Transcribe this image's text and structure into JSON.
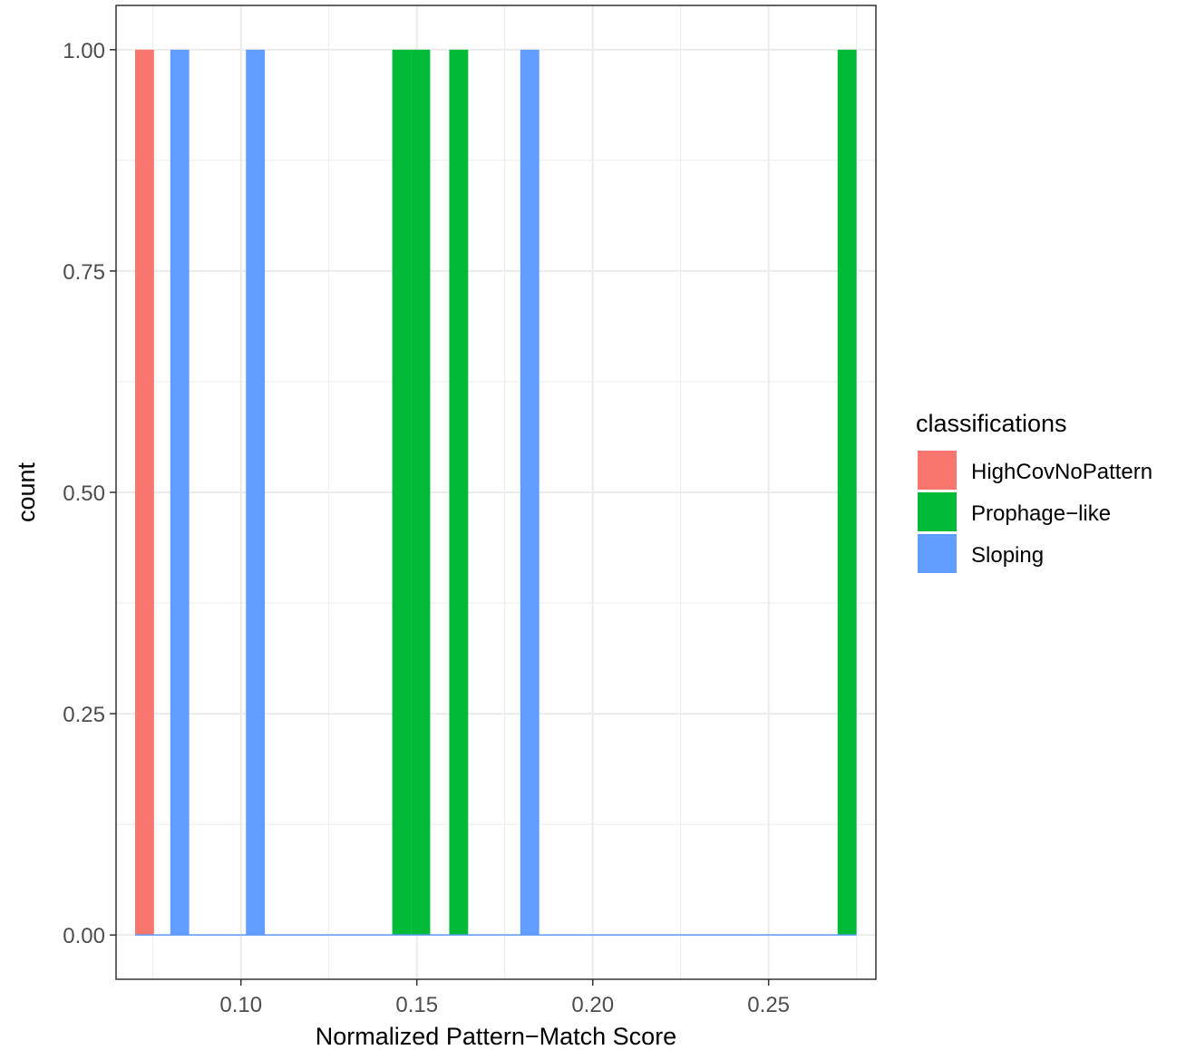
{
  "chart_data": {
    "type": "bar",
    "xlabel": "Normalized Pattern−Match Score",
    "ylabel": "count",
    "xlim": [
      0.0645,
      0.2805
    ],
    "ylim": [
      -0.05,
      1.05
    ],
    "xticks": [
      0.1,
      0.15,
      0.2,
      0.25
    ],
    "xtick_labels": [
      "0.10",
      "0.15",
      "0.20",
      "0.25"
    ],
    "yticks": [
      0.0,
      0.25,
      0.5,
      0.75,
      1.0
    ],
    "ytick_labels": [
      "0.00",
      "0.25",
      "0.50",
      "0.75",
      "1.00"
    ],
    "grid": true,
    "bin_width": 0.00538,
    "series": [
      {
        "name": "HighCovNoPattern",
        "color": "#F8766D",
        "bins": [
          {
            "x": 0.0726,
            "count": 1
          }
        ]
      },
      {
        "name": "Prophage−like",
        "color": "#00BA38",
        "bins": [
          {
            "x": 0.1457,
            "count": 1
          },
          {
            "x": 0.1511,
            "count": 1
          },
          {
            "x": 0.1619,
            "count": 1
          },
          {
            "x": 0.2723,
            "count": 1
          }
        ]
      },
      {
        "name": "Sloping",
        "color": "#619CFF",
        "bins": [
          {
            "x": 0.0826,
            "count": 1
          },
          {
            "x": 0.1041,
            "count": 1
          },
          {
            "x": 0.1821,
            "count": 1
          }
        ]
      }
    ],
    "baseline_range": [
      0.0699,
      0.275
    ],
    "legend": {
      "title": "classifications",
      "position": "right"
    }
  }
}
